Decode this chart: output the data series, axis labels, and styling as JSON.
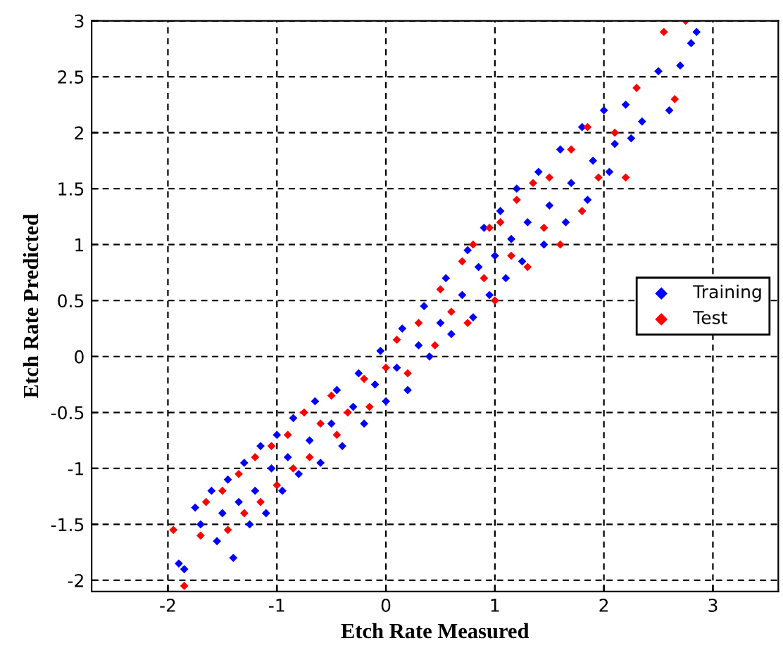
{
  "chart_data": {
    "type": "scatter",
    "xlabel": "Etch Rate Measured",
    "ylabel": "Etch Rate Predicted",
    "xlim": [
      -2.7,
      3.6
    ],
    "ylim": [
      -2.1,
      3
    ],
    "xticks": [
      -2,
      -1,
      0,
      1,
      2,
      3
    ],
    "yticks": [
      -2,
      -1.5,
      -1,
      -0.5,
      0,
      0.5,
      1,
      1.5,
      2,
      2.5,
      3
    ],
    "grid": true,
    "legend": "right",
    "marker": "diamond",
    "series": [
      {
        "name": "Training",
        "color": "#0000ff",
        "x": [
          -1.9,
          -1.85,
          -1.75,
          -1.7,
          -1.6,
          -1.55,
          -1.5,
          -1.45,
          -1.4,
          -1.35,
          -1.3,
          -1.25,
          -1.2,
          -1.15,
          -1.1,
          -1.05,
          -1.0,
          -0.95,
          -0.9,
          -0.85,
          -0.8,
          -0.7,
          -0.65,
          -0.6,
          -0.5,
          -0.45,
          -0.4,
          -0.3,
          -0.25,
          -0.2,
          -0.1,
          -0.05,
          0.0,
          0.1,
          0.15,
          0.2,
          0.3,
          0.35,
          0.4,
          0.5,
          0.55,
          0.6,
          0.7,
          0.75,
          0.8,
          0.85,
          0.9,
          0.95,
          1.0,
          1.05,
          1.1,
          1.15,
          1.2,
          1.25,
          1.3,
          1.4,
          1.45,
          1.5,
          1.6,
          1.65,
          1.7,
          1.8,
          1.85,
          1.9,
          2.0,
          2.05,
          2.1,
          2.2,
          2.25,
          2.35,
          2.5,
          2.6,
          2.7,
          2.8,
          2.85
        ],
        "values": [
          -1.85,
          -1.9,
          -1.35,
          -1.5,
          -1.2,
          -1.65,
          -1.4,
          -1.1,
          -1.8,
          -1.3,
          -0.95,
          -1.5,
          -1.2,
          -0.8,
          -1.4,
          -1.0,
          -0.7,
          -1.2,
          -0.9,
          -0.55,
          -1.05,
          -0.75,
          -0.4,
          -0.95,
          -0.6,
          -0.3,
          -0.8,
          -0.45,
          -0.15,
          -0.6,
          -0.25,
          0.05,
          -0.4,
          -0.1,
          0.25,
          -0.3,
          0.1,
          0.45,
          0.0,
          0.3,
          0.7,
          0.2,
          0.55,
          0.95,
          0.35,
          0.8,
          1.15,
          0.55,
          0.9,
          1.3,
          0.7,
          1.05,
          1.5,
          0.85,
          1.2,
          1.65,
          1.0,
          1.35,
          1.85,
          1.2,
          1.55,
          2.05,
          1.4,
          1.75,
          2.2,
          1.65,
          1.9,
          2.25,
          1.95,
          2.1,
          2.55,
          2.2,
          2.6,
          2.8,
          2.9
        ]
      },
      {
        "name": "Test",
        "color": "#ff0000",
        "x": [
          -1.85,
          -1.95,
          -1.7,
          -1.65,
          -1.5,
          -1.45,
          -1.35,
          -1.3,
          -1.2,
          -1.15,
          -1.05,
          -1.0,
          -0.9,
          -0.85,
          -0.75,
          -0.7,
          -0.6,
          -0.5,
          -0.45,
          -0.35,
          -0.2,
          -0.15,
          0.0,
          0.1,
          0.2,
          0.3,
          0.45,
          0.5,
          0.6,
          0.7,
          0.75,
          0.8,
          0.9,
          0.95,
          1.0,
          1.05,
          1.15,
          1.2,
          1.3,
          1.35,
          1.45,
          1.5,
          1.6,
          1.7,
          1.8,
          1.85,
          1.95,
          2.1,
          2.2,
          2.3,
          2.55,
          2.65,
          2.75
        ],
        "values": [
          -2.05,
          -1.55,
          -1.6,
          -1.3,
          -1.2,
          -1.55,
          -1.05,
          -1.4,
          -0.9,
          -1.3,
          -0.8,
          -1.15,
          -0.7,
          -1.0,
          -0.5,
          -0.9,
          -0.6,
          -0.35,
          -0.7,
          -0.5,
          -0.2,
          -0.45,
          -0.1,
          0.15,
          -0.15,
          0.3,
          0.1,
          0.6,
          0.4,
          0.85,
          0.3,
          1.0,
          0.7,
          1.15,
          0.5,
          1.2,
          0.9,
          1.4,
          0.8,
          1.55,
          1.15,
          1.6,
          1.0,
          1.85,
          1.3,
          2.05,
          1.6,
          2.0,
          1.6,
          2.4,
          2.9,
          2.3,
          3.0
        ]
      }
    ]
  }
}
